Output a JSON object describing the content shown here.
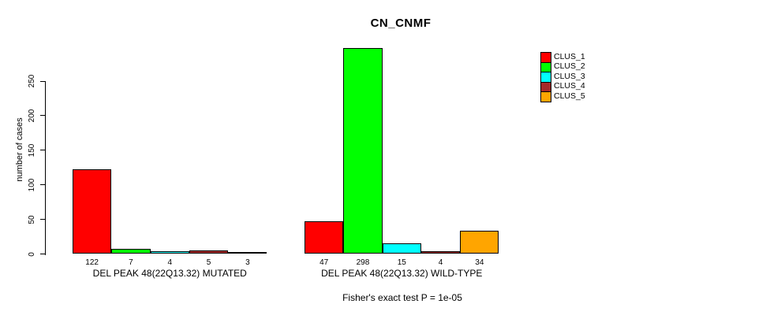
{
  "chart_data": {
    "type": "bar",
    "title": "CN_CNMF",
    "ylabel": "number of cases",
    "xlabel": "",
    "ylim": [
      0,
      250
    ],
    "yticks": [
      0,
      50,
      100,
      150,
      200,
      250
    ],
    "grid": false,
    "legend_position": "top-right",
    "series": [
      {
        "name": "CLUS_1",
        "color": "#FF0000"
      },
      {
        "name": "CLUS_2",
        "color": "#00FF00"
      },
      {
        "name": "CLUS_3",
        "color": "#00FFFF"
      },
      {
        "name": "CLUS_4",
        "color": "#A52A2A"
      },
      {
        "name": "CLUS_5",
        "color": "#FFA500"
      }
    ],
    "groups": [
      {
        "label": "DEL PEAK 48(22Q13.32) MUTATED",
        "values": [
          122,
          7,
          4,
          5,
          3
        ]
      },
      {
        "label": "DEL PEAK 48(22Q13.32) WILD-TYPE",
        "values": [
          47,
          298,
          15,
          4,
          34
        ]
      }
    ],
    "caption": "Fisher's exact test P = 1e-05"
  }
}
